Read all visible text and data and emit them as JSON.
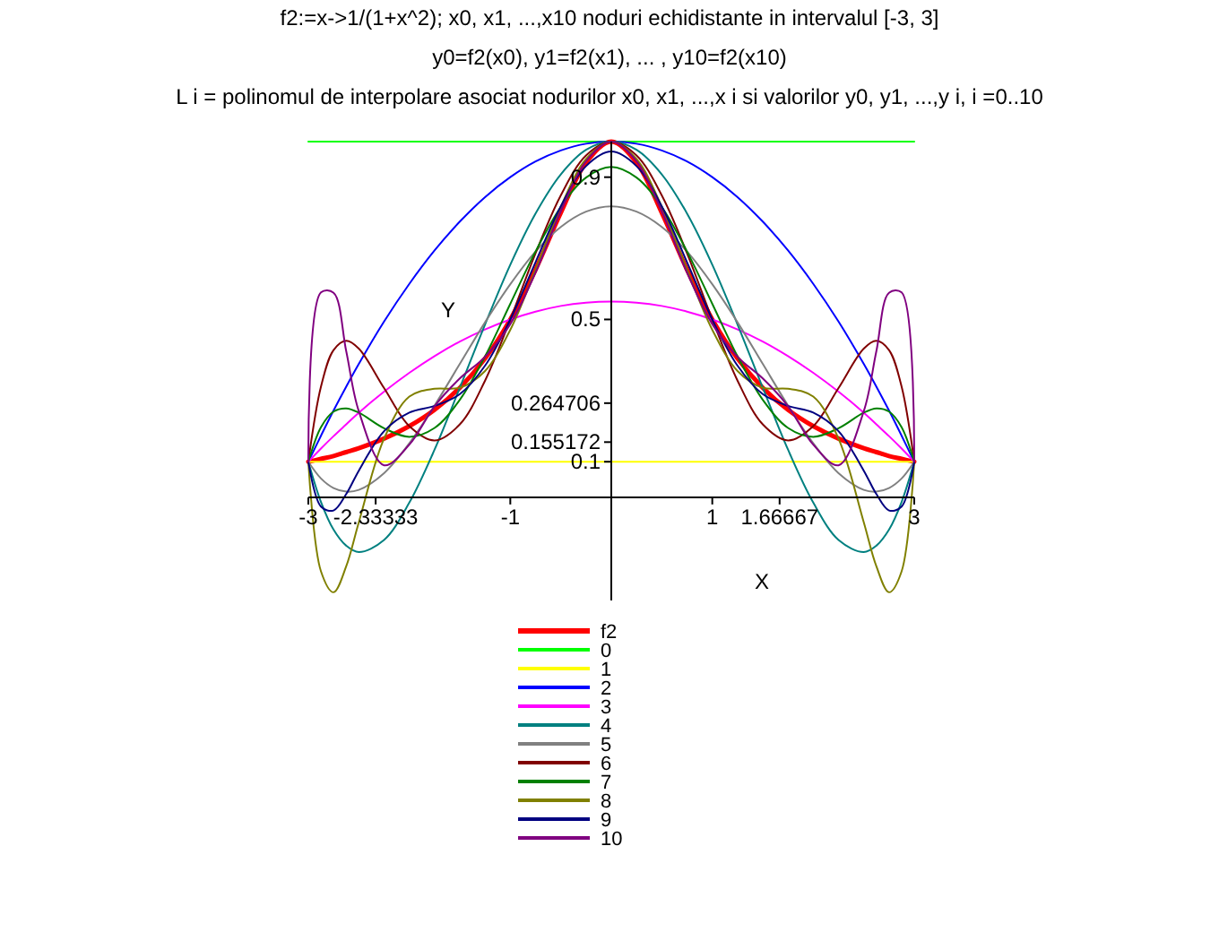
{
  "chart_data": {
    "type": "line",
    "title": "f2:=x->1/(1+x^2); x0,  x1,  ...,x10 noduri echidistante in intervalul [-3, 3]",
    "subtitle": "y0=f2(x0), y1=f2(x1), ... , y10=f2(x10)",
    "annotations": [
      "L i = polinomul de interpolare asociat nodurilor x0,  x1,  ...,x i si valorilor y0,  y1,  ...,y i,  i =0..10"
    ],
    "xlabel": "X",
    "ylabel": "Y",
    "xlim": [
      -3,
      3
    ],
    "ylim": [
      -0.29,
      1.0
    ],
    "xticks": [
      -3,
      {
        "value": -2.33333,
        "label": "-2.33333"
      },
      -1,
      1,
      {
        "value": 1.66667,
        "label": "1.66667"
      },
      3
    ],
    "yticks": [
      0.1,
      0.155172,
      0.264706,
      0.5,
      0.9
    ],
    "legend": "bottom",
    "grid": false,
    "x": [
      -3,
      -2.875,
      -2.75,
      -2.625,
      -2.5,
      -2.25,
      -2,
      -1.75,
      -1.5,
      -1.25,
      -1,
      -0.75,
      -0.5,
      -0.25,
      0,
      0.25,
      0.5,
      0.75,
      1,
      1.25,
      1.5,
      1.75,
      2,
      2.25,
      2.5,
      2.625,
      2.75,
      2.875,
      3
    ],
    "series": [
      {
        "name": "f2",
        "color": "#ff0000",
        "values": [
          0.1,
          0.108,
          0.116,
          0.127,
          0.138,
          0.165,
          0.2,
          0.246,
          0.308,
          0.39,
          0.5,
          0.64,
          0.8,
          0.941,
          1,
          0.941,
          0.8,
          0.64,
          0.5,
          0.39,
          0.308,
          0.246,
          0.2,
          0.165,
          0.138,
          0.127,
          0.116,
          0.108,
          0.1
        ]
      },
      {
        "name": "0",
        "color": "#00ff00",
        "values": [
          1,
          1,
          1,
          1,
          1,
          1,
          1,
          1,
          1,
          1,
          1,
          1,
          1,
          1,
          1,
          1,
          1,
          1,
          1,
          1,
          1,
          1,
          1,
          1,
          1,
          1,
          1,
          1,
          1
        ]
      },
      {
        "name": "1",
        "color": "#ffff00",
        "values": [
          0.1,
          0.1,
          0.1,
          0.1,
          0.1,
          0.1,
          0.1,
          0.1,
          0.1,
          0.1,
          0.1,
          0.1,
          0.1,
          0.1,
          0.1,
          0.1,
          0.1,
          0.1,
          0.1,
          0.1,
          0.1,
          0.1,
          0.1,
          0.1,
          0.1,
          0.1,
          0.1,
          0.1,
          0.1
        ]
      },
      {
        "name": "2",
        "color": "#0000ff",
        "values": [
          0.1,
          0.173,
          0.244,
          0.311,
          0.375,
          0.494,
          0.6,
          0.694,
          0.775,
          0.844,
          0.9,
          0.944,
          0.975,
          0.994,
          1,
          0.994,
          0.975,
          0.944,
          0.9,
          0.844,
          0.775,
          0.694,
          0.6,
          0.494,
          0.375,
          0.311,
          0.244,
          0.173,
          0.1
        ]
      },
      {
        "name": "3",
        "color": "#ff00ff",
        "values": [
          0.1,
          0.137,
          0.172,
          0.205,
          0.238,
          0.297,
          0.35,
          0.397,
          0.438,
          0.472,
          0.5,
          0.522,
          0.538,
          0.547,
          0.55,
          0.547,
          0.538,
          0.522,
          0.5,
          0.472,
          0.438,
          0.397,
          0.35,
          0.297,
          0.238,
          0.205,
          0.172,
          0.137,
          0.1
        ]
      },
      {
        "name": "4",
        "color": "#008080",
        "values": [
          0.1,
          -0.013,
          -0.091,
          -0.136,
          -0.154,
          -0.12,
          -0.015,
          0.134,
          0.308,
          0.486,
          0.654,
          0.798,
          0.908,
          0.977,
          1,
          0.977,
          0.908,
          0.798,
          0.654,
          0.486,
          0.308,
          0.134,
          -0.015,
          -0.12,
          -0.154,
          -0.136,
          -0.091,
          -0.013,
          0.1
        ]
      },
      {
        "name": "5",
        "color": "#808080",
        "values": [
          0.1,
          0.053,
          0.026,
          0.016,
          0.021,
          0.068,
          0.152,
          0.258,
          0.375,
          0.492,
          0.599,
          0.691,
          0.76,
          0.803,
          0.818,
          0.803,
          0.76,
          0.691,
          0.599,
          0.492,
          0.375,
          0.258,
          0.152,
          0.068,
          0.021,
          0.016,
          0.026,
          0.053,
          0.1
        ]
      },
      {
        "name": "6",
        "color": "#800000",
        "values": [
          0.1,
          0.311,
          0.414,
          0.44,
          0.418,
          0.307,
          0.2,
          0.16,
          0.205,
          0.328,
          0.5,
          0.686,
          0.849,
          0.961,
          1,
          0.961,
          0.849,
          0.686,
          0.5,
          0.328,
          0.205,
          0.16,
          0.2,
          0.307,
          0.418,
          0.44,
          0.414,
          0.311,
          0.1
        ]
      },
      {
        "name": "7",
        "color": "#008000",
        "values": [
          0.1,
          0.197,
          0.241,
          0.25,
          0.238,
          0.194,
          0.17,
          0.195,
          0.274,
          0.396,
          0.544,
          0.691,
          0.816,
          0.899,
          0.929,
          0.899,
          0.816,
          0.691,
          0.544,
          0.396,
          0.274,
          0.195,
          0.17,
          0.194,
          0.238,
          0.25,
          0.241,
          0.197,
          0.1
        ]
      },
      {
        "name": "8",
        "color": "#808000",
        "values": [
          0.1,
          -0.208,
          -0.267,
          -0.194,
          -0.07,
          0.165,
          0.283,
          0.305,
          0.308,
          0.355,
          0.471,
          0.64,
          0.817,
          0.951,
          1,
          0.951,
          0.817,
          0.64,
          0.471,
          0.355,
          0.308,
          0.305,
          0.283,
          0.165,
          -0.07,
          -0.194,
          -0.267,
          -0.208,
          0.1
        ]
      },
      {
        "name": "9",
        "color": "#000080",
        "values": [
          0.1,
          -0.026,
          -0.037,
          0.009,
          0.075,
          0.186,
          0.238,
          0.257,
          0.29,
          0.37,
          0.5,
          0.661,
          0.818,
          0.931,
          0.972,
          0.931,
          0.818,
          0.661,
          0.5,
          0.37,
          0.29,
          0.257,
          0.238,
          0.186,
          0.075,
          0.009,
          -0.037,
          -0.026,
          0.1
        ]
      },
      {
        "name": "10",
        "color": "#800080",
        "values": [
          0.1,
          0.576,
          0.575,
          0.411,
          0.242,
          0.09,
          0.148,
          0.256,
          0.334,
          0.395,
          0.487,
          0.632,
          0.804,
          0.945,
          1,
          0.945,
          0.804,
          0.632,
          0.487,
          0.395,
          0.334,
          0.256,
          0.148,
          0.09,
          0.242,
          0.411,
          0.575,
          0.576,
          0.1
        ]
      }
    ]
  }
}
